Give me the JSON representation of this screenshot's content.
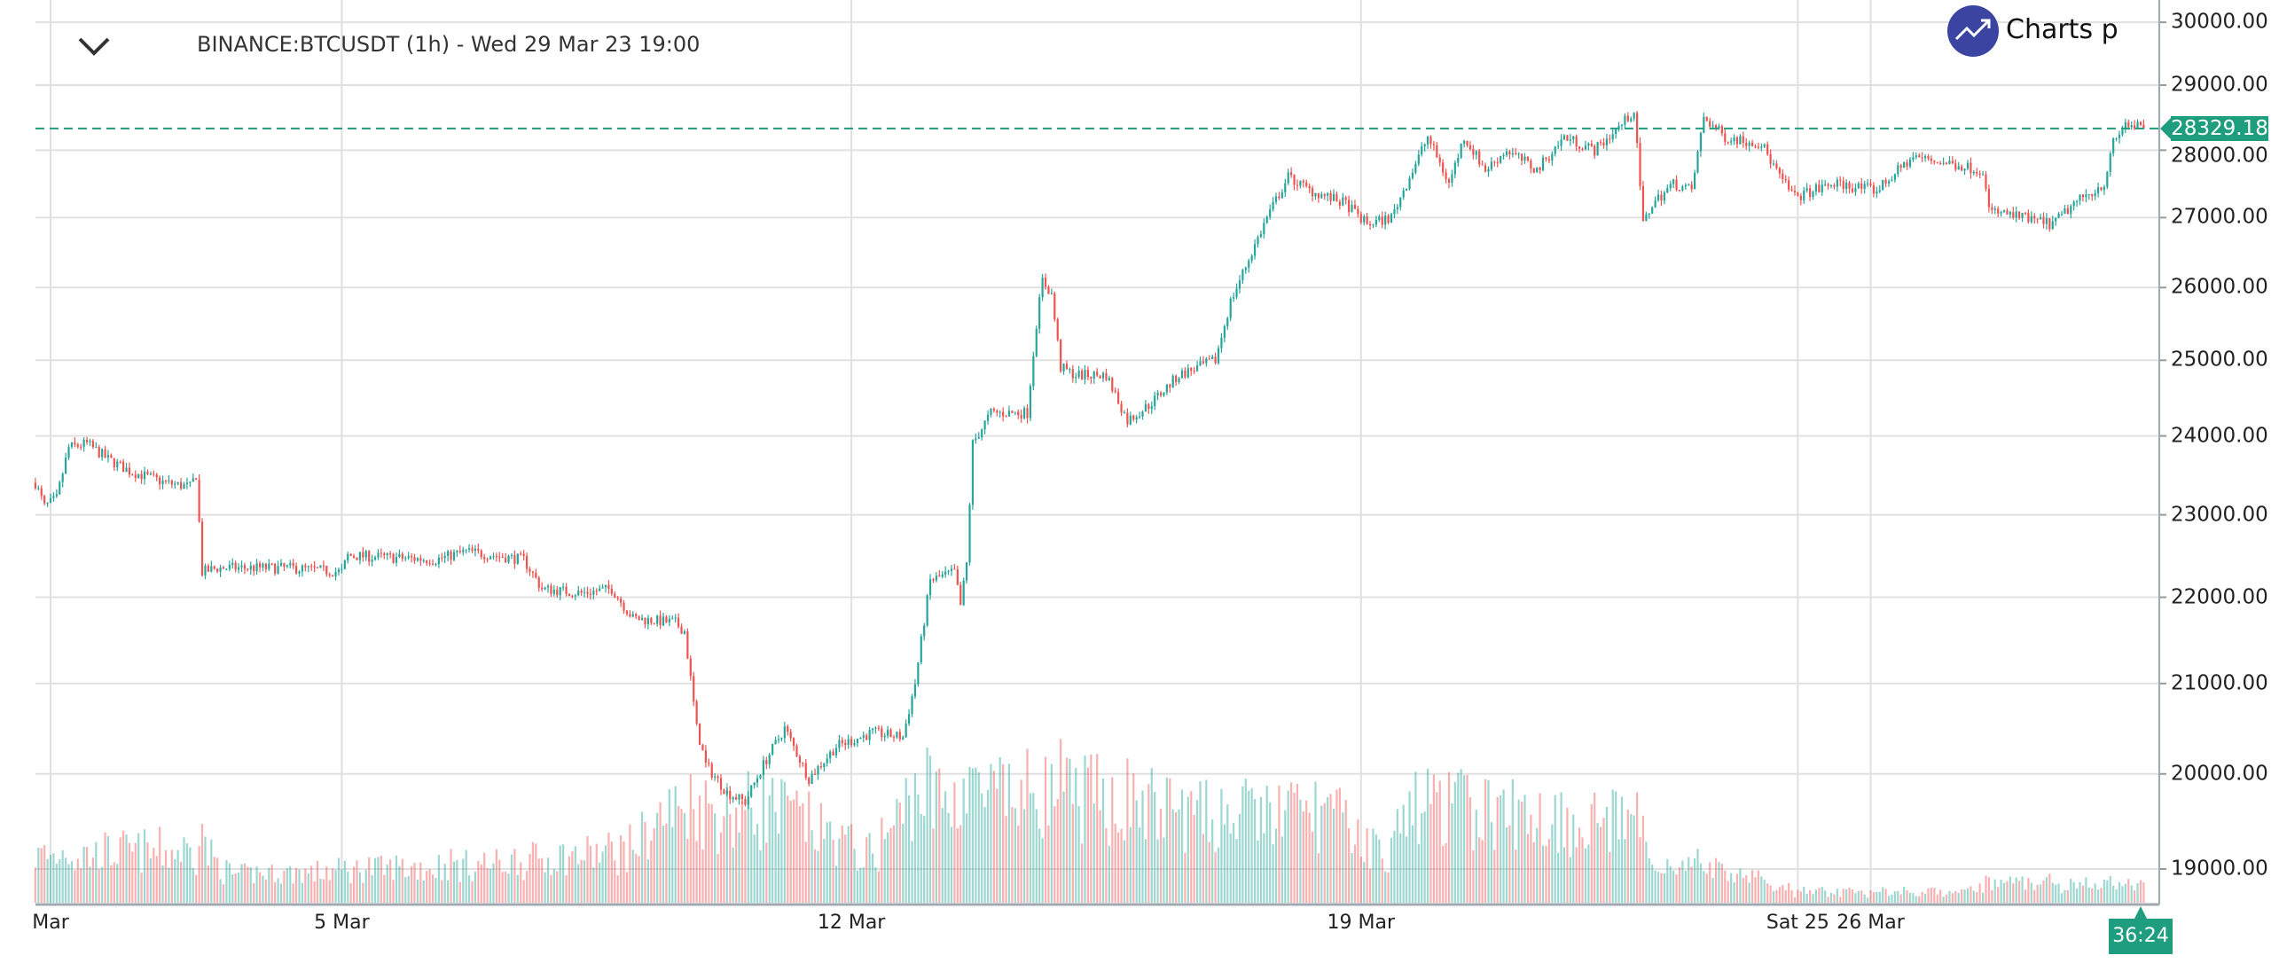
{
  "header": {
    "title": "BINANCE:BTCUSDT (1h) - Wed 29 Mar 23 19:00",
    "logo_text": "Charts p"
  },
  "chart_data": {
    "type": "candlestick",
    "symbol": "BINANCE:BTCUSDT",
    "interval": "1h",
    "y_scale": "log",
    "ylim": [
      18700,
      30000
    ],
    "y_ticks": [
      "30000.00",
      "29000.00",
      "28000.00",
      "27000.00",
      "26000.00",
      "25000.00",
      "24000.00",
      "23000.00",
      "22000.00",
      "21000.00",
      "20000.00",
      "19000.00"
    ],
    "y_tick_values": [
      30000,
      29000,
      28000,
      27000,
      26000,
      25000,
      24000,
      23000,
      22000,
      21000,
      20000,
      19000
    ],
    "x_ticks": [
      {
        "label": "Mar",
        "hour": 0
      },
      {
        "label": "5 Mar",
        "hour": 96
      },
      {
        "label": "12 Mar",
        "hour": 264
      },
      {
        "label": "19 Mar",
        "hour": 432
      },
      {
        "label": "Sat 25",
        "hour": 576
      },
      {
        "label": "26 Mar",
        "hour": 600
      }
    ],
    "x_unit": "hours since 1 Mar 00:00",
    "last_price": "28329.18",
    "countdown": "36:24",
    "colors": {
      "up": "#26a69a",
      "down": "#ef5350",
      "last": "#1e9e7e",
      "grid": "#e0e0e0"
    },
    "close_anchors": [
      [
        -5,
        23400
      ],
      [
        -2,
        23100
      ],
      [
        2,
        23200
      ],
      [
        6,
        23850
      ],
      [
        12,
        23900
      ],
      [
        19,
        23700
      ],
      [
        26,
        23550
      ],
      [
        38,
        23400
      ],
      [
        46,
        23350
      ],
      [
        48,
        23500
      ],
      [
        50,
        22300
      ],
      [
        55,
        22350
      ],
      [
        79,
        22350
      ],
      [
        96,
        22300
      ],
      [
        98,
        22500
      ],
      [
        127,
        22450
      ],
      [
        137,
        22550
      ],
      [
        156,
        22450
      ],
      [
        162,
        22100
      ],
      [
        175,
        22050
      ],
      [
        185,
        22100
      ],
      [
        192,
        21750
      ],
      [
        206,
        21700
      ],
      [
        209,
        21600
      ],
      [
        213,
        20500
      ],
      [
        216,
        20100
      ],
      [
        223,
        19800
      ],
      [
        229,
        19700
      ],
      [
        235,
        20100
      ],
      [
        242,
        20500
      ],
      [
        250,
        19950
      ],
      [
        259,
        20300
      ],
      [
        271,
        20450
      ],
      [
        281,
        20400
      ],
      [
        285,
        21000
      ],
      [
        290,
        22200
      ],
      [
        298,
        22300
      ],
      [
        300,
        21900
      ],
      [
        302,
        22400
      ],
      [
        304,
        23900
      ],
      [
        310,
        24300
      ],
      [
        322,
        24300
      ],
      [
        325,
        25500
      ],
      [
        327,
        26100
      ],
      [
        330,
        25900
      ],
      [
        333,
        24900
      ],
      [
        338,
        24800
      ],
      [
        348,
        24800
      ],
      [
        355,
        24200
      ],
      [
        362,
        24400
      ],
      [
        372,
        24800
      ],
      [
        384,
        25000
      ],
      [
        389,
        25800
      ],
      [
        396,
        26500
      ],
      [
        401,
        27000
      ],
      [
        408,
        27600
      ],
      [
        415,
        27400
      ],
      [
        427,
        27200
      ],
      [
        434,
        26900
      ],
      [
        442,
        27000
      ],
      [
        449,
        27700
      ],
      [
        454,
        28200
      ],
      [
        461,
        27500
      ],
      [
        466,
        28200
      ],
      [
        473,
        27700
      ],
      [
        480,
        28000
      ],
      [
        490,
        27700
      ],
      [
        499,
        28200
      ],
      [
        509,
        28000
      ],
      [
        516,
        28300
      ],
      [
        522,
        28600
      ],
      [
        525,
        26900
      ],
      [
        528,
        27200
      ],
      [
        535,
        27500
      ],
      [
        541,
        27400
      ],
      [
        545,
        28500
      ],
      [
        552,
        28200
      ],
      [
        564,
        28100
      ],
      [
        570,
        27600
      ],
      [
        575,
        27300
      ],
      [
        588,
        27500
      ],
      [
        602,
        27400
      ],
      [
        614,
        27900
      ],
      [
        626,
        27800
      ],
      [
        637,
        27700
      ],
      [
        639,
        27100
      ],
      [
        650,
        27000
      ],
      [
        660,
        26900
      ],
      [
        667,
        27200
      ],
      [
        677,
        27500
      ],
      [
        680,
        28100
      ],
      [
        684,
        28400
      ],
      [
        690,
        28329.18
      ]
    ],
    "volume_profile": [
      [
        -5,
        0.35
      ],
      [
        50,
        0.4
      ],
      [
        60,
        0.2
      ],
      [
        150,
        0.3
      ],
      [
        190,
        0.4
      ],
      [
        205,
        0.7
      ],
      [
        240,
        0.7
      ],
      [
        270,
        0.35
      ],
      [
        285,
        0.8
      ],
      [
        350,
        0.8
      ],
      [
        380,
        0.65
      ],
      [
        420,
        0.7
      ],
      [
        440,
        0.35
      ],
      [
        450,
        0.75
      ],
      [
        520,
        0.6
      ],
      [
        530,
        0.3
      ],
      [
        560,
        0.2
      ],
      [
        575,
        0.06
      ],
      [
        630,
        0.08
      ],
      [
        640,
        0.15
      ],
      [
        690,
        0.12
      ]
    ]
  }
}
